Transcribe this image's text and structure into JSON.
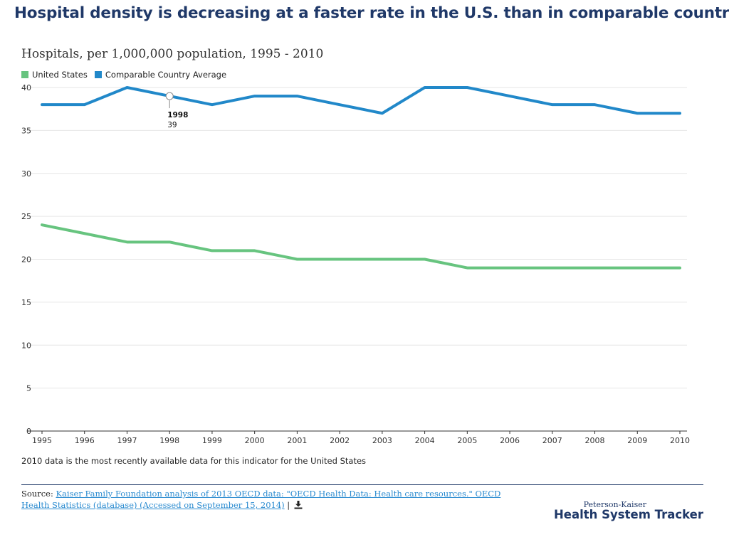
{
  "headline": "Hospital density is decreasing at a faster rate in the U.S. than in comparable countries",
  "footnote": "2010 data is the most recently available data for this indicator for the United States",
  "source": {
    "prefix": "Source: ",
    "link_text": "Kaiser Family Foundation analysis of 2013 OECD data: \"OECD Health Data: Health care resources.\" OECD Health Statistics (database) (Accessed on September 15, 2014)",
    "separator": " | ",
    "download_icon": "download-icon"
  },
  "branding": {
    "top": "Peterson-Kaiser",
    "main": "Health System Tracker"
  },
  "colors": {
    "headline": "#1f3868",
    "united_states": "#67c47f",
    "comparable_average": "#2188c9",
    "grid": "#e6e6e6",
    "axis": "#333333"
  },
  "chart_data": {
    "type": "line",
    "title": "Hospitals, per 1,000,000 population, 1995 - 2010",
    "x": [
      1995,
      1996,
      1997,
      1998,
      1999,
      2000,
      2001,
      2002,
      2003,
      2004,
      2005,
      2006,
      2007,
      2008,
      2009,
      2010
    ],
    "x_tick_labels": [
      "1995",
      "1996",
      "1997",
      "1998",
      "1999",
      "2000",
      "2001",
      "2002",
      "2003",
      "2004",
      "2005",
      "2006",
      "2007",
      "2008",
      "2009",
      "2010"
    ],
    "y_tick_labels": [
      "0",
      "5",
      "10",
      "15",
      "20",
      "25",
      "30",
      "35",
      "40"
    ],
    "ylim": [
      0,
      40
    ],
    "grid": true,
    "legend_position": "top-left",
    "series": [
      {
        "name": "United States",
        "color": "#67c47f",
        "values": [
          24,
          23,
          22,
          22,
          21,
          21,
          20,
          20,
          20,
          20,
          19,
          19,
          19,
          19,
          19,
          19
        ]
      },
      {
        "name": "Comparable Country Average",
        "color": "#2188c9",
        "values": [
          38,
          38,
          40,
          39,
          38,
          39,
          39,
          38,
          37,
          40,
          40,
          39,
          38,
          38,
          37,
          37
        ]
      }
    ],
    "tooltip": {
      "series": "Comparable Country Average",
      "x_label": "1998",
      "value_label": "39"
    }
  }
}
